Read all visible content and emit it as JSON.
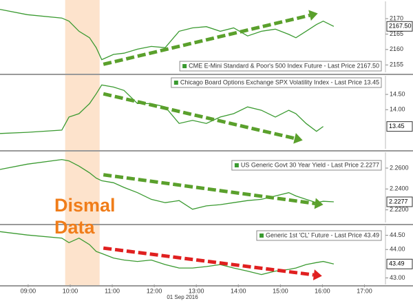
{
  "chart_data": [
    {
      "type": "line",
      "legend": "CME E-Mini Standard & Poor's 500 Index Future - Last Price 2167.50",
      "color": "#3a9a30",
      "x": [
        8.33,
        8.98,
        9.8,
        9.97,
        10.21,
        10.46,
        10.62,
        10.75,
        11.03,
        11.28,
        11.6,
        11.93,
        12.26,
        12.59,
        12.91,
        13.24,
        13.57,
        13.89,
        14.22,
        14.55,
        14.88,
        15.2,
        15.37,
        15.61,
        15.86,
        16.02,
        16.27
      ],
      "values": [
        2173.0,
        2171.3,
        2170.2,
        2169.2,
        2165.9,
        2163.8,
        2160.6,
        2156.7,
        2158.4,
        2158.8,
        2160.1,
        2161.0,
        2160.6,
        2165.9,
        2167.0,
        2167.4,
        2165.9,
        2167.0,
        2164.4,
        2165.9,
        2166.6,
        2164.9,
        2163.8,
        2165.9,
        2168.1,
        2169.2,
        2167.5
      ],
      "xlim": [
        8.33,
        17.5
      ],
      "ylim": [
        2152.6,
        2175.6
      ],
      "yticks": [
        2155,
        2160,
        2165,
        2170
      ],
      "last_value": 2167.5,
      "last_value_label": "2167.50",
      "trend": {
        "from": [
          10.79,
          2155.2
        ],
        "to": [
          15.89,
          2171.7
        ],
        "color": "#5aa02c"
      }
    },
    {
      "type": "line",
      "legend": "Chicago Board Options Exchange SPX Volatility Index - Last Price 13.45",
      "color": "#3a9a30",
      "x": [
        8.33,
        8.98,
        9.8,
        9.97,
        10.21,
        10.46,
        10.62,
        10.75,
        11.03,
        11.28,
        11.6,
        11.93,
        12.26,
        12.59,
        12.91,
        13.24,
        13.57,
        13.89,
        14.22,
        14.55,
        14.88,
        15.2,
        15.37,
        15.61,
        15.86,
        16.02,
        16.27
      ],
      "values": [
        13.22,
        13.26,
        13.33,
        13.76,
        13.87,
        14.2,
        14.52,
        14.81,
        14.74,
        14.63,
        14.2,
        14.2,
        14.09,
        13.55,
        13.65,
        13.55,
        13.76,
        13.87,
        14.09,
        13.98,
        13.76,
        13.98,
        13.87,
        13.55,
        13.29,
        13.45,
        null
      ],
      "xlim": [
        8.33,
        17.5
      ],
      "ylim": [
        12.72,
        15.11
      ],
      "yticks": [
        {
          "value": 14.5,
          "label": "14.50"
        },
        {
          "value": 14,
          "label": "14.00"
        }
      ],
      "last_value": 13.45,
      "last_value_label": "13.45",
      "trend": {
        "from": [
          10.79,
          14.52
        ],
        "to": [
          15.53,
          13.0
        ],
        "color": "#5aa02c"
      }
    },
    {
      "type": "line",
      "legend": "US Generic Govt 30 Year Yield - Last Price 2.2277",
      "color": "#3a9a30",
      "x": [
        8.33,
        8.98,
        9.8,
        9.97,
        10.21,
        10.46,
        10.62,
        10.75,
        11.03,
        11.28,
        11.6,
        11.93,
        12.26,
        12.59,
        12.91,
        13.24,
        13.57,
        13.89,
        14.22,
        14.55,
        14.88,
        15.2,
        15.37,
        15.61,
        15.86,
        16.02,
        16.27
      ],
      "values": [
        2.2587,
        2.2638,
        2.2682,
        2.2669,
        2.2619,
        2.2555,
        2.2504,
        2.2479,
        2.246,
        2.2415,
        2.2365,
        2.2301,
        2.2269,
        2.2289,
        2.2206,
        2.2238,
        2.225,
        2.2269,
        2.2289,
        2.2301,
        2.2333,
        2.2365,
        2.2333,
        2.2301,
        2.2269,
        2.2282,
        2.2277
      ],
      "xlim": [
        8.33,
        17.5
      ],
      "ylim": [
        2.2079,
        2.2752
      ],
      "yticks": [
        {
          "value": 2.26,
          "label": "2.2600"
        },
        {
          "value": 2.24,
          "label": "2.2400"
        },
        {
          "value": 2.22,
          "label": "2.2200"
        }
      ],
      "last_value": 2.2277,
      "last_value_label": "2.2277",
      "trend": {
        "from": [
          10.79,
          2.2536
        ],
        "to": [
          16.02,
          2.225
        ],
        "color": "#5aa02c"
      }
    },
    {
      "type": "line",
      "legend": "Generic 1st 'CL' Future - Last Price 43.49",
      "color": "#3a9a30",
      "x": [
        8.33,
        8.98,
        9.8,
        9.97,
        10.21,
        10.46,
        10.62,
        10.75,
        11.03,
        11.28,
        11.6,
        11.93,
        12.26,
        12.59,
        12.91,
        13.24,
        13.57,
        13.89,
        14.22,
        14.55,
        14.88,
        15.2,
        15.37,
        15.61,
        15.86,
        16.02,
        16.27
      ],
      "values": [
        44.63,
        44.51,
        44.4,
        44.24,
        44.4,
        44.17,
        43.93,
        43.86,
        43.7,
        43.63,
        43.58,
        43.63,
        43.47,
        43.35,
        43.35,
        43.4,
        43.47,
        43.35,
        43.24,
        43.12,
        43.24,
        43.3,
        43.35,
        43.47,
        43.54,
        43.58,
        43.49
      ],
      "xlim": [
        8.33,
        17.5
      ],
      "ylim": [
        42.77,
        44.83
      ],
      "yticks": [
        {
          "value": 44.5,
          "label": "44.50"
        },
        {
          "value": 44,
          "label": "44.00"
        },
        {
          "value": 43,
          "label": "43.00"
        }
      ],
      "last_value": 43.49,
      "last_value_label": "43.49",
      "trend": {
        "from": [
          10.79,
          44.05
        ],
        "to": [
          15.99,
          43.07
        ],
        "color": "#e02020"
      },
      "xticks": [
        {
          "value": 9,
          "label": "09:00"
        },
        {
          "value": 10,
          "label": "10:00"
        },
        {
          "value": 11,
          "label": "11:00"
        },
        {
          "value": 12,
          "label": "12:00"
        },
        {
          "value": 13,
          "label": "13:00"
        },
        {
          "value": 14,
          "label": "14:00"
        },
        {
          "value": 15,
          "label": "15:00"
        },
        {
          "value": 16,
          "label": "16:00"
        },
        {
          "value": 17,
          "label": "17:00"
        }
      ],
      "xlabel": "01 Sep 2016"
    }
  ],
  "highlight": {
    "x": [
      9.88,
      10.7
    ],
    "color": "#fde3cc"
  },
  "annotation": {
    "lines": [
      "Dismal",
      "Data"
    ],
    "color": "#f07d1a"
  }
}
